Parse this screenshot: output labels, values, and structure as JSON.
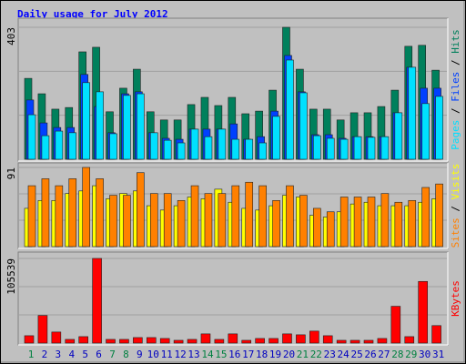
{
  "chart_data": [
    {
      "type": "bar",
      "title": "Daily usage for July 2012",
      "ylim": [
        0,
        403
      ],
      "yticks": [
        403
      ],
      "legend_separator": " / ",
      "series": [
        {
          "name": "Hits",
          "color": "#00805c",
          "values": [
            247,
            200,
            153,
            158,
            328,
            342,
            145,
            217,
            275,
            145,
            120,
            120,
            167,
            189,
            164,
            189,
            139,
            147,
            211,
            403,
            275,
            153,
            153,
            120,
            142,
            142,
            161,
            211,
            345,
            348,
            272
          ]
        },
        {
          "name": "Files",
          "color": "#0040ff",
          "values": [
            181,
            111,
            97,
            97,
            259,
            161,
            81,
            200,
            206,
            81,
            64,
            61,
            92,
            92,
            92,
            108,
            61,
            69,
            147,
            317,
            206,
            75,
            75,
            64,
            69,
            69,
            69,
            142,
            281,
            217,
            217
          ]
        },
        {
          "name": "Pages",
          "color": "#00e0ff",
          "values": [
            136,
            72,
            86,
            81,
            234,
            206,
            78,
            195,
            200,
            81,
            58,
            50,
            92,
            69,
            92,
            61,
            61,
            50,
            131,
            303,
            203,
            72,
            64,
            61,
            69,
            67,
            69,
            142,
            281,
            170,
            192
          ]
        }
      ]
    },
    {
      "type": "bar",
      "ylim": [
        0,
        91
      ],
      "yticks": [
        91
      ],
      "legend_separator": " / ",
      "series": [
        {
          "name": "Visits",
          "color": "#ffff00",
          "values": [
            44,
            53,
            53,
            61,
            64,
            70,
            55,
            61,
            64,
            47,
            42,
            47,
            57,
            55,
            66,
            51,
            44,
            42,
            47,
            59,
            57,
            36,
            34,
            40,
            49,
            51,
            47,
            47,
            47,
            51,
            55
          ]
        },
        {
          "name": "Sites",
          "color": "#ff8000",
          "values": [
            70,
            78,
            70,
            78,
            91,
            78,
            59,
            59,
            85,
            61,
            61,
            53,
            70,
            61,
            61,
            70,
            74,
            70,
            53,
            70,
            59,
            44,
            40,
            57,
            57,
            57,
            61,
            51,
            53,
            68,
            72
          ]
        }
      ]
    },
    {
      "type": "bar",
      "ylim": [
        0,
        105539
      ],
      "yticks": [
        105539
      ],
      "series": [
        {
          "name": "KBytes",
          "color": "#ff0000",
          "values": [
            9178,
            34415,
            13766,
            4589,
            8030,
            105539,
            4589,
            4589,
            6883,
            6883,
            5736,
            3442,
            4589,
            11472,
            4589,
            11472,
            3442,
            5736,
            5736,
            11472,
            10325,
            14913,
            9178,
            3442,
            3442,
            3442,
            5736,
            45886,
            8030,
            76861,
            21797
          ]
        }
      ],
      "categories": [
        1,
        2,
        3,
        4,
        5,
        6,
        7,
        8,
        9,
        10,
        11,
        12,
        13,
        14,
        15,
        16,
        17,
        18,
        19,
        20,
        21,
        22,
        23,
        24,
        25,
        26,
        27,
        28,
        29,
        30,
        31
      ],
      "category_colors": [
        "#008040",
        "#0000c0",
        "#0000c0",
        "#0000c0",
        "#0000c0",
        "#0000c0",
        "#008040",
        "#008040",
        "#0000c0",
        "#0000c0",
        "#0000c0",
        "#0000c0",
        "#0000c0",
        "#008040",
        "#008040",
        "#0000c0",
        "#0000c0",
        "#0000c0",
        "#0000c0",
        "#0000c0",
        "#008040",
        "#008040",
        "#0000c0",
        "#0000c0",
        "#0000c0",
        "#0000c0",
        "#0000c0",
        "#008040",
        "#008040",
        "#0000c0",
        "#0000c0"
      ]
    }
  ]
}
